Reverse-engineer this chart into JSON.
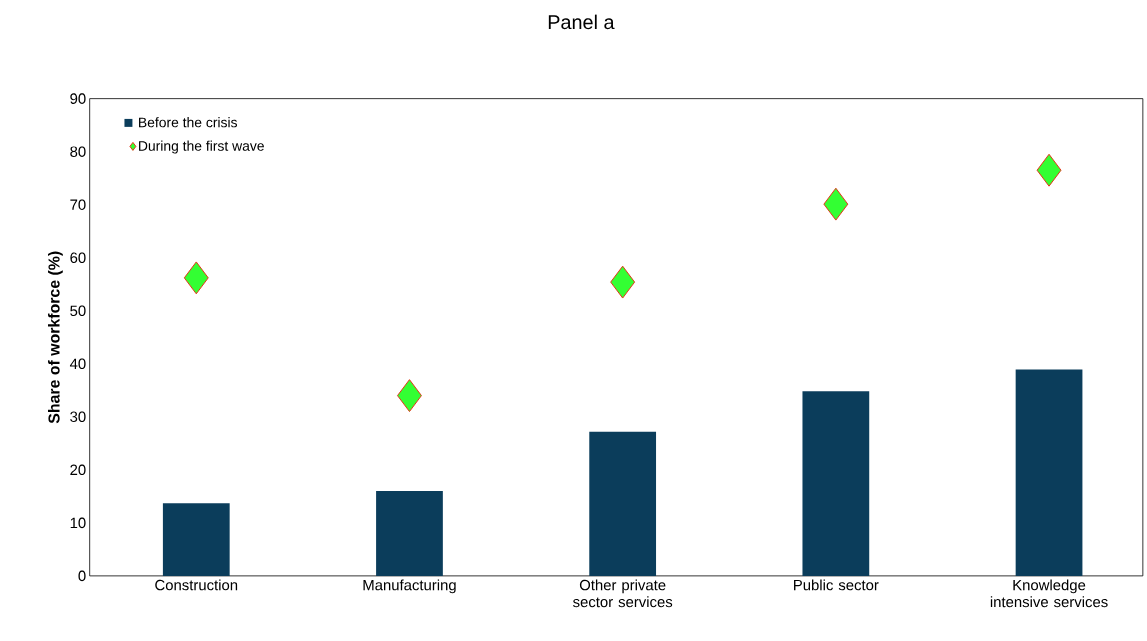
{
  "chart_data": {
    "type": "bar",
    "title": "Panel a",
    "ylabel": "Share of workforce (%)",
    "categories": [
      "Construction",
      "Manufacturing",
      "Other private sector services",
      "Public sector",
      "Knowledge intensive services"
    ],
    "series": [
      {
        "name": "Before the crisis",
        "color": "#0b3d5b",
        "values": [
          13.7,
          16.0,
          27.2,
          34.8,
          38.9
        ]
      },
      {
        "name": "During the first wave",
        "type": "scatter",
        "color": "#33ff33",
        "values": [
          56.2,
          34.0,
          55.4,
          70.1,
          76.5
        ]
      }
    ],
    "marker": "diamond",
    "ylim": [
      0,
      90
    ],
    "yticks": [
      0,
      10,
      20,
      30,
      40,
      50,
      60,
      70,
      80,
      90
    ],
    "legend": "top left",
    "grid": false
  }
}
